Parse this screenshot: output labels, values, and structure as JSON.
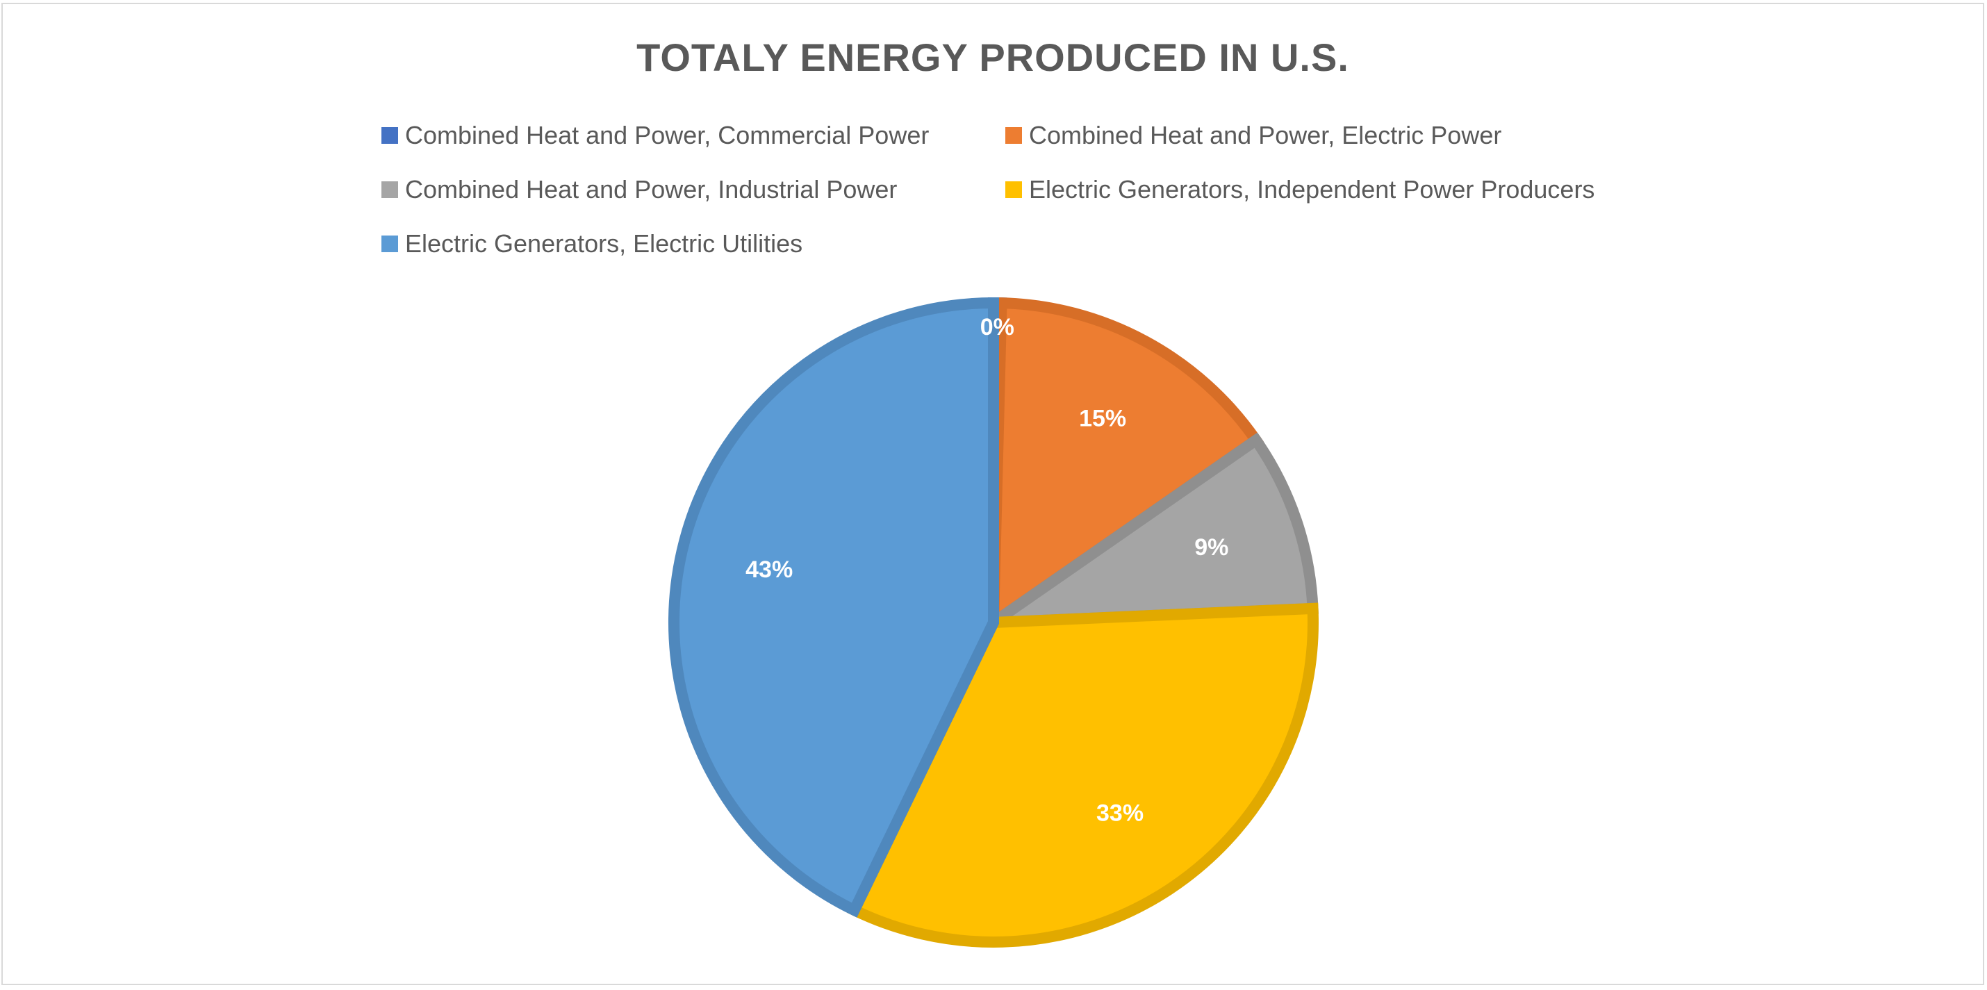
{
  "chart_data": {
    "type": "pie",
    "title": "TOTALY ENERGY PRODUCED IN U.S.",
    "legend_position": "top",
    "slices": [
      {
        "name": "Combined Heat and Power, Commercial Power",
        "value": 0.4,
        "label": "0%",
        "color": "#4472C4",
        "border": "#3A63AE"
      },
      {
        "name": "Combined Heat and Power, Electric Power",
        "value": 15,
        "label": "15%",
        "color": "#ED7D31",
        "border": "#D76E27"
      },
      {
        "name": "Combined Heat and Power, Industrial Power",
        "value": 9,
        "label": "9%",
        "color": "#A5A5A5",
        "border": "#8F8F8F"
      },
      {
        "name": "Electric Generators, Independent Power Producers",
        "value": 33,
        "label": "33%",
        "color": "#FFC000",
        "border": "#E1A900"
      },
      {
        "name": "Electric Generators, Electric Utilities",
        "value": 43,
        "label": "43%",
        "color": "#5B9BD5",
        "border": "#4F88BD"
      }
    ]
  }
}
